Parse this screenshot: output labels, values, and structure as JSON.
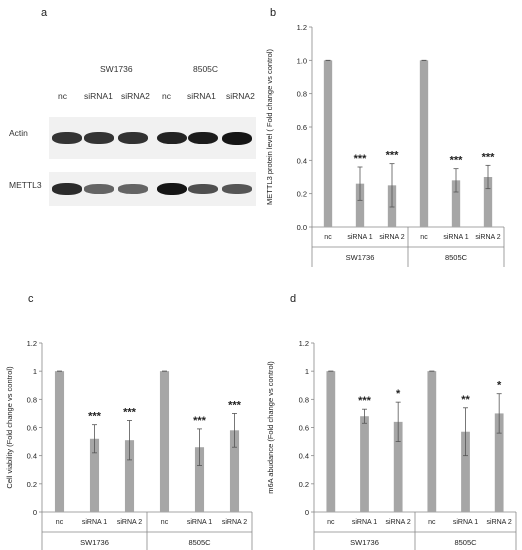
{
  "panel_labels": [
    "a",
    "b",
    "c",
    "d"
  ],
  "blot": {
    "cell_lines": [
      "SW1736",
      "8505C"
    ],
    "lanes": [
      "nc",
      "siRNA1",
      "siRNA2",
      "nc",
      "siRNA1",
      "siRNA2"
    ],
    "rows": [
      {
        "label": "Actin",
        "intensity": [
          0.78,
          0.78,
          0.8,
          0.9,
          0.95,
          1.0
        ]
      },
      {
        "label": "METTL3",
        "intensity": [
          0.85,
          0.45,
          0.45,
          1.0,
          0.6,
          0.55
        ]
      }
    ],
    "colors": {
      "band": "#151515",
      "background": "#f1f1f1"
    }
  },
  "chart_data": [
    {
      "panel": "b",
      "type": "bar",
      "categories": [
        "nc",
        "siRNA 1",
        "siRNA 2",
        "nc",
        "siRNA 1",
        "siRNA 2"
      ],
      "groups": [
        "SW1736",
        "8505C"
      ],
      "values": [
        1.0,
        0.26,
        0.25,
        1.0,
        0.28,
        0.3
      ],
      "errors": [
        0.0,
        0.1,
        0.13,
        0.0,
        0.07,
        0.07
      ],
      "significance": [
        "",
        "***",
        "***",
        "",
        "***",
        "***"
      ],
      "ylabel": "METTL3 protein level ( Fold change vs control)",
      "xlabel": "",
      "ylim": [
        0,
        1.2
      ],
      "yticks": [
        "0.0",
        "0.2",
        "0.4",
        "0.6",
        "0.8",
        "1.0",
        "1.2"
      ],
      "grid": false,
      "bar_color": "#a6a6a6"
    },
    {
      "panel": "c",
      "type": "bar",
      "categories": [
        "nc",
        "siRNA 1",
        "siRNA 2",
        "nc",
        "siRNA 1",
        "siRNA 2"
      ],
      "groups": [
        "SW1736",
        "8505C"
      ],
      "values": [
        1.0,
        0.52,
        0.51,
        1.0,
        0.46,
        0.58
      ],
      "errors": [
        0.0,
        0.1,
        0.14,
        0.0,
        0.13,
        0.12
      ],
      "significance": [
        "",
        "***",
        "***",
        "",
        "***",
        "***"
      ],
      "ylabel": "Cell viability (Fold change vs control)",
      "xlabel": "",
      "ylim": [
        0,
        1.2
      ],
      "yticks": [
        "0",
        "0.2",
        "0.4",
        "0.6",
        "0.8",
        "1",
        "1.2"
      ],
      "grid": false,
      "bar_color": "#a6a6a6"
    },
    {
      "panel": "d",
      "type": "bar",
      "categories": [
        "nc",
        "siRNA 1",
        "siRNA 2",
        "nc",
        "siRNA 1",
        "siRNA 2"
      ],
      "groups": [
        "SW1736",
        "8505C"
      ],
      "values": [
        1.0,
        0.68,
        0.64,
        1.0,
        0.57,
        0.7
      ],
      "errors": [
        0.0,
        0.05,
        0.14,
        0.0,
        0.17,
        0.14
      ],
      "significance": [
        "",
        "***",
        "*",
        "",
        "**",
        "*"
      ],
      "ylabel": "m6A abudance (Fold change vs control)",
      "xlabel": "",
      "ylim": [
        0,
        1.2
      ],
      "yticks": [
        "0",
        "0.2",
        "0.4",
        "0.6",
        "0.8",
        "1",
        "1.2"
      ],
      "grid": false,
      "bar_color": "#a6a6a6"
    }
  ]
}
